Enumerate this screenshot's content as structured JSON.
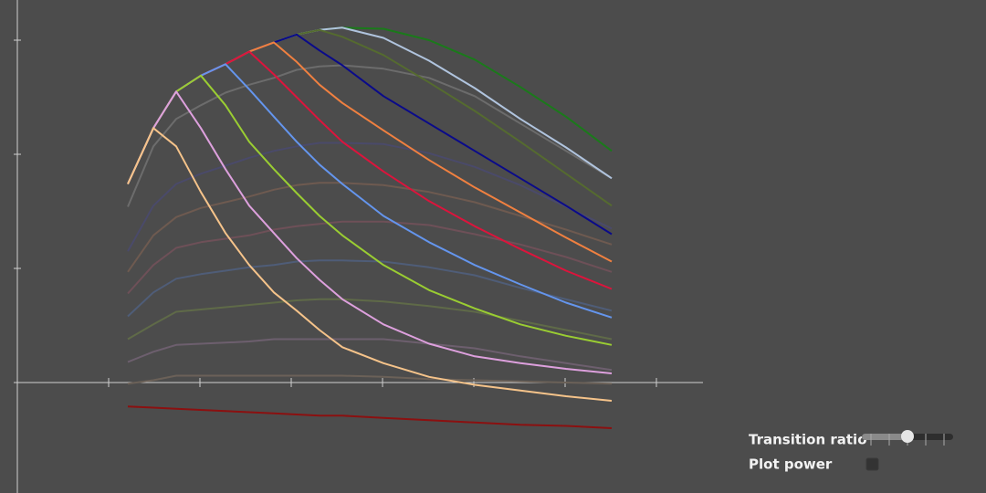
{
  "chart_data": {
    "type": "line",
    "x": [
      1.21,
      1.49,
      1.74,
      2.01,
      2.28,
      2.54,
      2.81,
      3.06,
      3.31,
      3.56,
      4.01,
      4.51,
      5.01,
      5.51,
      6.01,
      6.51
    ],
    "xlim": [
      -0.04,
      7.51
    ],
    "ylim": [
      -0.968,
      3.352
    ],
    "xticks": [
      1,
      2,
      3,
      4,
      5,
      6,
      7
    ],
    "yticks": [
      1,
      2,
      3
    ],
    "series": [
      {
        "color": "#6b6158",
        "values": [
          -0.01,
          0.02,
          0.06,
          0.06,
          0.06,
          0.06,
          0.06,
          0.06,
          0.06,
          0.06,
          0.05,
          0.03,
          0.02,
          0.01,
          0.0,
          -0.01
        ]
      },
      {
        "color": "#6d5f6e",
        "values": [
          0.18,
          0.27,
          0.33,
          0.34,
          0.35,
          0.36,
          0.38,
          0.38,
          0.38,
          0.38,
          0.38,
          0.34,
          0.3,
          0.23,
          0.17,
          0.11
        ]
      },
      {
        "color": "#5f6a48",
        "values": [
          0.38,
          0.51,
          0.62,
          0.64,
          0.66,
          0.68,
          0.7,
          0.72,
          0.73,
          0.73,
          0.71,
          0.67,
          0.62,
          0.54,
          0.46,
          0.38
        ]
      },
      {
        "color": "#4f5d78",
        "values": [
          0.58,
          0.79,
          0.91,
          0.95,
          0.98,
          1.01,
          1.03,
          1.06,
          1.07,
          1.07,
          1.06,
          1.01,
          0.94,
          0.83,
          0.73,
          0.63
        ]
      },
      {
        "color": "#6e5058",
        "values": [
          0.78,
          1.03,
          1.18,
          1.23,
          1.26,
          1.29,
          1.34,
          1.37,
          1.39,
          1.41,
          1.41,
          1.38,
          1.3,
          1.21,
          1.1,
          0.97
        ]
      },
      {
        "color": "#6e5a50",
        "values": [
          0.97,
          1.29,
          1.45,
          1.53,
          1.58,
          1.63,
          1.69,
          1.73,
          1.75,
          1.75,
          1.73,
          1.67,
          1.58,
          1.46,
          1.34,
          1.21
        ]
      },
      {
        "color": "#4a4a6a",
        "values": [
          1.15,
          1.55,
          1.74,
          1.83,
          1.9,
          1.97,
          2.03,
          2.07,
          2.1,
          2.1,
          2.09,
          2.01,
          1.89,
          1.73,
          1.54,
          1.35
        ]
      },
      {
        "color": "#6c6c6c",
        "values": [
          1.54,
          2.07,
          2.31,
          2.43,
          2.54,
          2.61,
          2.67,
          2.74,
          2.77,
          2.78,
          2.75,
          2.67,
          2.51,
          2.27,
          2.03,
          1.79
        ]
      },
      {
        "color": "#8b1010",
        "values": [
          -0.21,
          -0.22,
          -0.23,
          -0.24,
          -0.25,
          -0.26,
          -0.27,
          -0.28,
          -0.29,
          -0.29,
          -0.31,
          -0.33,
          -0.35,
          -0.37,
          -0.38,
          -0.4
        ]
      },
      {
        "color": "#1a7a1a",
        "values": [
          1.74,
          2.23,
          2.55,
          2.69,
          2.79,
          2.9,
          2.98,
          3.05,
          3.09,
          3.11,
          3.1,
          3.0,
          2.83,
          2.59,
          2.33,
          2.03
        ]
      },
      {
        "color": "#b0c4de",
        "values": [
          1.74,
          2.23,
          2.55,
          2.69,
          2.79,
          2.9,
          2.98,
          3.05,
          3.09,
          3.11,
          3.02,
          2.82,
          2.58,
          2.31,
          2.06,
          1.79
        ]
      },
      {
        "color": "#556b2f",
        "values": [
          1.74,
          2.23,
          2.55,
          2.69,
          2.79,
          2.9,
          2.98,
          3.05,
          3.09,
          3.03,
          2.87,
          2.63,
          2.38,
          2.11,
          1.83,
          1.55
        ]
      },
      {
        "color": "#0a0a8a",
        "values": [
          1.74,
          2.23,
          2.55,
          2.69,
          2.79,
          2.9,
          2.98,
          3.05,
          2.91,
          2.78,
          2.51,
          2.27,
          2.03,
          1.79,
          1.55,
          1.3
        ]
      },
      {
        "color": "#f08040",
        "values": [
          1.74,
          2.23,
          2.55,
          2.69,
          2.79,
          2.9,
          2.98,
          2.81,
          2.61,
          2.45,
          2.21,
          1.95,
          1.71,
          1.49,
          1.27,
          1.06
        ]
      },
      {
        "color": "#dc143c",
        "values": [
          1.74,
          2.23,
          2.55,
          2.69,
          2.79,
          2.9,
          2.7,
          2.5,
          2.3,
          2.11,
          1.85,
          1.59,
          1.37,
          1.17,
          0.98,
          0.82
        ]
      },
      {
        "color": "#6495ed",
        "values": [
          1.74,
          2.23,
          2.55,
          2.69,
          2.79,
          2.57,
          2.33,
          2.11,
          1.91,
          1.74,
          1.46,
          1.23,
          1.03,
          0.86,
          0.7,
          0.57
        ]
      },
      {
        "color": "#9acd32",
        "values": [
          1.74,
          2.23,
          2.55,
          2.69,
          2.43,
          2.11,
          1.87,
          1.66,
          1.46,
          1.29,
          1.03,
          0.81,
          0.65,
          0.51,
          0.41,
          0.33
        ]
      },
      {
        "color": "#dda0dd",
        "values": [
          1.74,
          2.23,
          2.55,
          2.23,
          1.87,
          1.55,
          1.31,
          1.09,
          0.9,
          0.73,
          0.51,
          0.34,
          0.23,
          0.17,
          0.12,
          0.08
        ]
      },
      {
        "color": "#f5c38a",
        "values": [
          1.74,
          2.23,
          2.07,
          1.67,
          1.31,
          1.03,
          0.79,
          0.63,
          0.46,
          0.31,
          0.17,
          0.05,
          -0.02,
          -0.07,
          -0.12,
          -0.16
        ]
      }
    ]
  },
  "controls": {
    "slider_label": "Transition ratio",
    "checkbox_label": "Plot power"
  }
}
